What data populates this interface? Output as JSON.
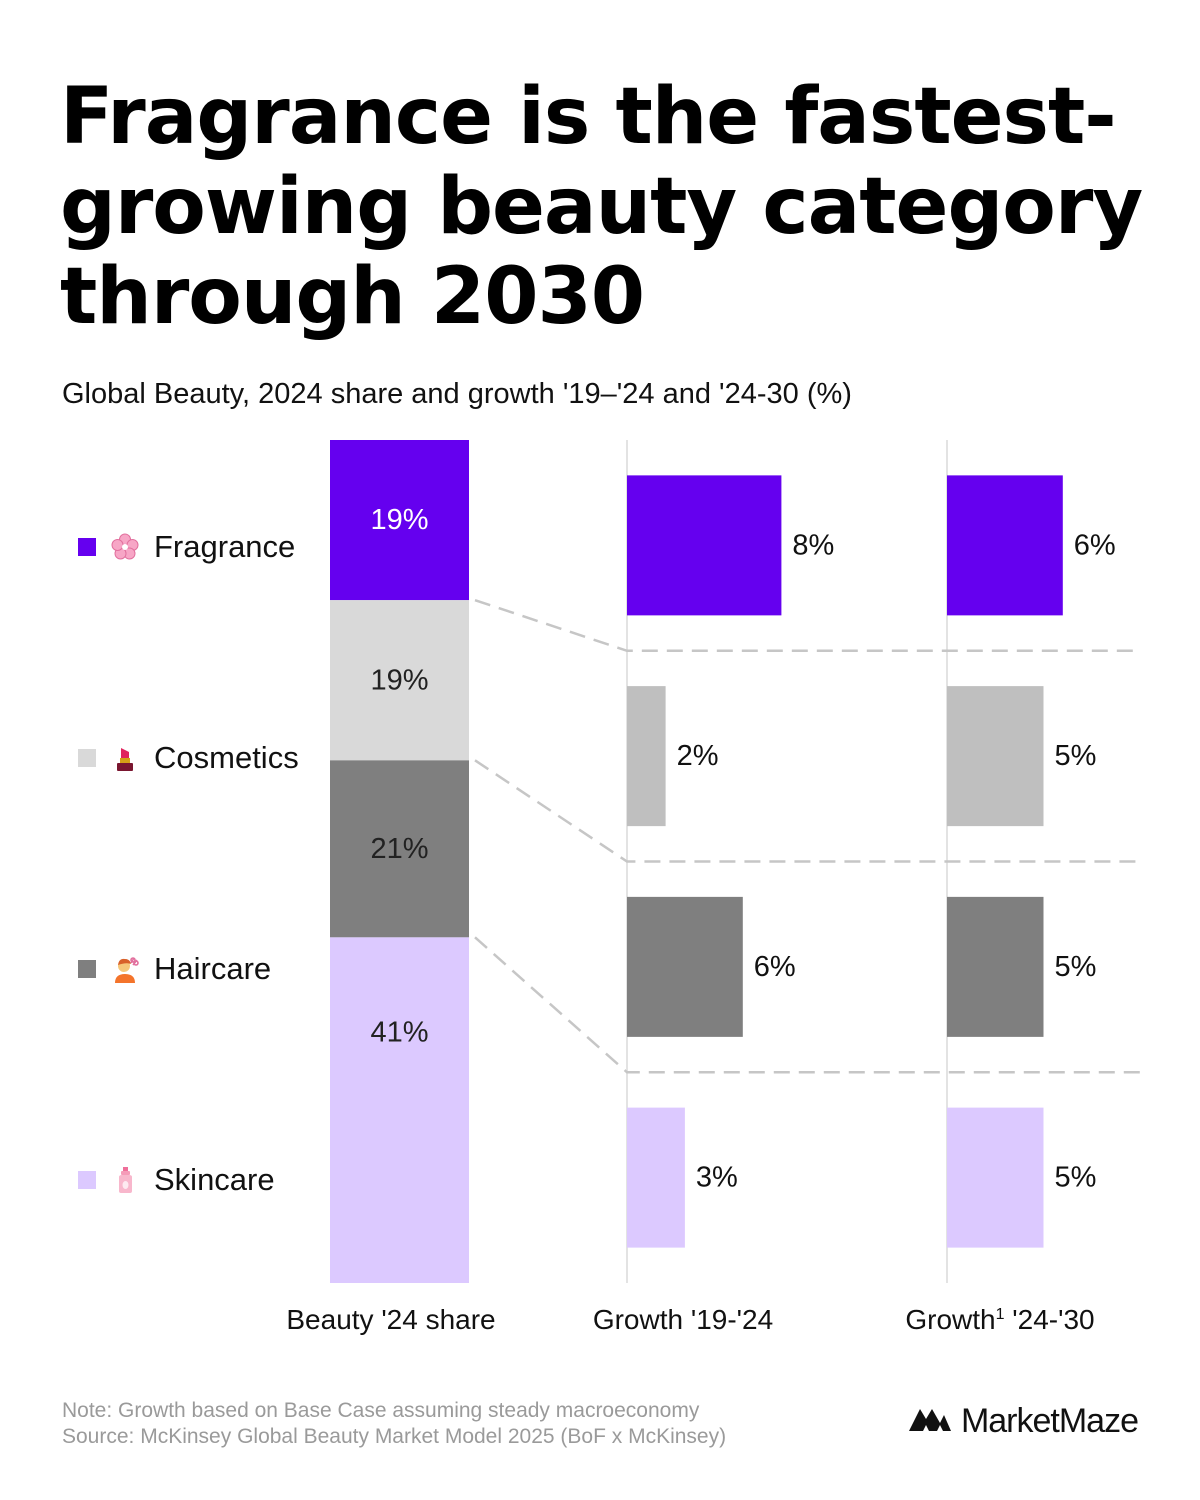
{
  "header": {
    "title": "Fragrance is the fastest-growing beauty category through 2030",
    "subtitle": "Global Beauty, 2024 share and growth '19–'24 and '24-30 (%)"
  },
  "chart_data": {
    "type": "bar",
    "title": "Fragrance is the fastest-growing beauty category through 2030",
    "subtitle": "Global Beauty, 2024 share and growth '19–'24 and '24-30 (%)",
    "categories": [
      "Fragrance",
      "Cosmetics",
      "Haircare",
      "Skincare"
    ],
    "category_colors": [
      "#6500ef",
      "#d9d9d9",
      "#7f7f7f",
      "#dcc9ff"
    ],
    "growth_bar_colors": [
      "#6500ef",
      "#bfbfbf",
      "#7f7f7f",
      "#dcc9ff"
    ],
    "category_icons": [
      "cherry-blossom-icon",
      "lipstick-icon",
      "haircut-person-icon",
      "lotion-bottle-icon"
    ],
    "share_2024": {
      "label": "Beauty '24 share",
      "values": [
        19,
        19,
        21,
        41
      ],
      "value_labels": [
        "19%",
        "19%",
        "21%",
        "41%"
      ]
    },
    "growth_19_24": {
      "label": "Growth '19-'24",
      "values": [
        8,
        2,
        6,
        3
      ],
      "value_labels": [
        "8%",
        "2%",
        "6%",
        "3%"
      ]
    },
    "growth_24_30": {
      "label": "Growth",
      "label_sup": "1",
      "label_suffix": " '24-'30",
      "values": [
        6,
        5,
        5,
        5
      ],
      "value_labels": [
        "6%",
        "5%",
        "5%",
        "5%"
      ]
    }
  },
  "footer": {
    "note": "Note: Growth based on Base Case assuming steady macroeconomy",
    "source": "Source: McKinsey Global Beauty Market Model 2025 (BoF x McKinsey)",
    "brand": "MarketMaze"
  }
}
